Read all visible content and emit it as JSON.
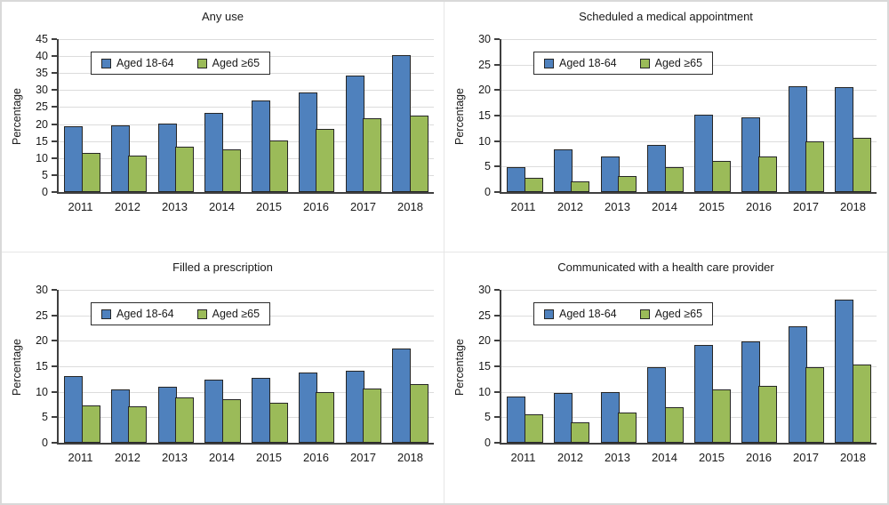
{
  "figure": {
    "ylabel": "Percentage",
    "legend": {
      "items": [
        {
          "label": "Aged 18-64",
          "color": "#4f81bd"
        },
        {
          "label": "Aged ≥65",
          "color": "#9bbb59"
        }
      ],
      "position": "inside-top-left"
    },
    "colors": {
      "series_blue": "#4f81bd",
      "series_green": "#9bbb59",
      "bar_border": "#262626",
      "axis": "#3f3f3f",
      "gridline": "#dcdcdc",
      "text": "#1a1a1a",
      "panel_divider": "#e6e6e6",
      "outer_border": "#d9d9d9",
      "background": "#ffffff"
    }
  },
  "chart_data": [
    {
      "type": "bar",
      "title": "Any use",
      "ylabel": "Percentage",
      "xlabel": "",
      "ylim": [
        0,
        45
      ],
      "ytick_step": 5,
      "grid": true,
      "legend_position": "inside-top-left",
      "categories": [
        "2011",
        "2012",
        "2013",
        "2014",
        "2015",
        "2016",
        "2017",
        "2018"
      ],
      "series": [
        {
          "name": "Aged 18-64",
          "values": [
            19.3,
            19.7,
            20.2,
            23.4,
            27.0,
            29.2,
            34.4,
            40.2
          ]
        },
        {
          "name": "Aged ≥65",
          "values": [
            11.5,
            10.8,
            13.3,
            12.6,
            15.1,
            18.5,
            21.8,
            22.5
          ]
        }
      ]
    },
    {
      "type": "bar",
      "title": "Scheduled a medical appointment",
      "ylabel": "Percentage",
      "xlabel": "",
      "ylim": [
        0,
        30
      ],
      "ytick_step": 5,
      "grid": true,
      "legend_position": "inside-top-left",
      "categories": [
        "2011",
        "2012",
        "2013",
        "2014",
        "2015",
        "2016",
        "2017",
        "2018"
      ],
      "series": [
        {
          "name": "Aged 18-64",
          "values": [
            4.9,
            8.3,
            7.0,
            9.3,
            15.1,
            14.6,
            20.7,
            20.5
          ]
        },
        {
          "name": "Aged ≥65",
          "values": [
            2.8,
            2.1,
            3.2,
            4.8,
            6.1,
            6.9,
            10.0,
            10.6
          ]
        }
      ]
    },
    {
      "type": "bar",
      "title": "Filled a prescription",
      "ylabel": "Percentage",
      "xlabel": "",
      "ylim": [
        0,
        30
      ],
      "ytick_step": 5,
      "grid": true,
      "legend_position": "inside-top-left",
      "categories": [
        "2011",
        "2012",
        "2013",
        "2014",
        "2015",
        "2016",
        "2017",
        "2018"
      ],
      "series": [
        {
          "name": "Aged 18-64",
          "values": [
            13.1,
            10.4,
            11.0,
            12.3,
            12.8,
            13.7,
            14.2,
            18.5
          ]
        },
        {
          "name": "Aged ≥65",
          "values": [
            7.3,
            7.1,
            8.9,
            8.6,
            7.8,
            10.0,
            10.7,
            11.6
          ]
        }
      ]
    },
    {
      "type": "bar",
      "title": "Communicated with a health care provider",
      "ylabel": "Percentage",
      "xlabel": "",
      "ylim": [
        0,
        30
      ],
      "ytick_step": 5,
      "grid": true,
      "legend_position": "inside-top-left",
      "categories": [
        "2011",
        "2012",
        "2013",
        "2014",
        "2015",
        "2016",
        "2017",
        "2018"
      ],
      "series": [
        {
          "name": "Aged 18-64",
          "values": [
            9.0,
            9.8,
            10.0,
            14.9,
            19.2,
            19.9,
            22.8,
            28.1
          ]
        },
        {
          "name": "Aged ≥65",
          "values": [
            5.5,
            4.0,
            5.9,
            7.0,
            10.5,
            11.2,
            14.9,
            15.4
          ]
        }
      ]
    }
  ]
}
